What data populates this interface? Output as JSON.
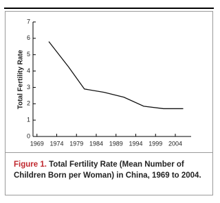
{
  "chart_data": {
    "type": "line",
    "y_label": "Total Fertility Rate",
    "x": [
      1972,
      1977,
      1981,
      1986,
      1991,
      1996,
      2001,
      2006
    ],
    "values": [
      5.8,
      4.25,
      2.9,
      2.7,
      2.4,
      1.85,
      1.7,
      1.7
    ],
    "color": "#111111",
    "xlim": [
      1968,
      2008
    ],
    "xticks": [
      1969,
      1974,
      1979,
      1984,
      1989,
      1994,
      1999,
      2004
    ],
    "ylim": [
      0,
      7
    ],
    "yticks": [
      0,
      1,
      2,
      3,
      4,
      5,
      6,
      7
    ]
  },
  "caption": {
    "label": "Figure 1.",
    "text": "Total Fertility Rate (Mean Number of Children Born per Woman) in China, 1969 to 2004."
  }
}
